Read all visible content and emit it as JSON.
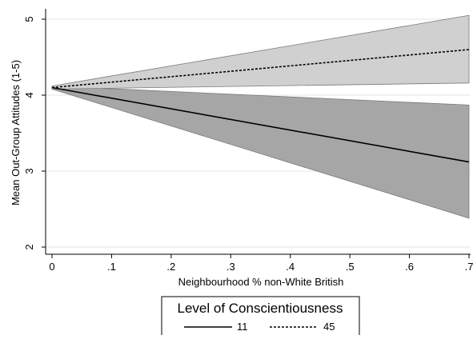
{
  "chart_data": {
    "type": "line",
    "xlabel": "Neighbourhood % non-White British",
    "ylabel": "Mean Out-Group Attitudes (1-5)",
    "xlim": [
      0,
      0.7
    ],
    "ylim": [
      2,
      5
    ],
    "x_ticks": [
      0,
      0.1,
      0.2,
      0.3,
      0.4,
      0.5,
      0.6,
      0.7
    ],
    "x_tick_labels": [
      "0",
      ".1",
      ".2",
      ".3",
      ".4",
      ".5",
      ".6",
      ".7"
    ],
    "y_ticks": [
      2,
      3,
      4,
      5
    ],
    "y_tick_labels": [
      "2",
      "3",
      "4",
      "5"
    ],
    "grid": true,
    "legend": {
      "title": "Level of Conscientiousness",
      "placement": "bottom-center"
    },
    "series": [
      {
        "name": "11",
        "line_style": "solid",
        "x": [
          0,
          0.7
        ],
        "y": [
          4.1,
          3.12
        ],
        "ci_lower": [
          4.08,
          2.38
        ],
        "ci_upper": [
          4.12,
          3.87
        ],
        "band_color": "#a6a6a6"
      },
      {
        "name": "45",
        "line_style": "dashed",
        "x": [
          0,
          0.7
        ],
        "y": [
          4.1,
          4.6
        ],
        "ci_lower": [
          4.08,
          4.16
        ],
        "ci_upper": [
          4.12,
          5.05
        ],
        "band_color": "#d0d0d0"
      }
    ]
  }
}
